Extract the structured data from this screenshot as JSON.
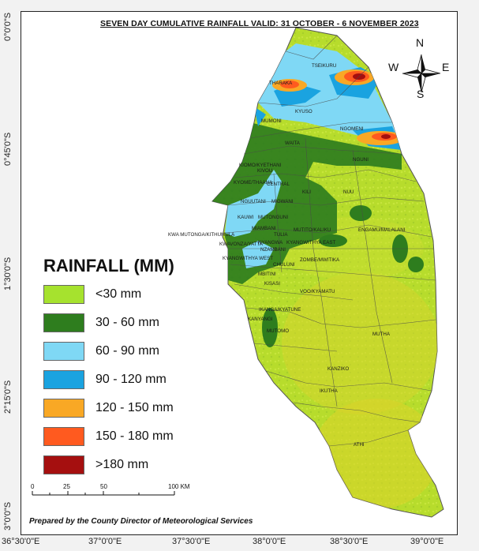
{
  "title": "SEVEN DAY CUMULATIVE RAINFALL VALID: 31 OCTOBER - 6 NOVEMBER 2023",
  "lat_labels": [
    "0°0'0\"S",
    "0°45'0\"S",
    "1°30'0\"S",
    "2°15'0\"S",
    "3°0'0\"S"
  ],
  "lon_labels": [
    "36°30'0\"E",
    "37°0'0\"E",
    "37°30'0\"E",
    "38°0'0\"E",
    "38°30'0\"E",
    "39°0'0\"E"
  ],
  "compass": {
    "n": "N",
    "s": "S",
    "e": "E",
    "w": "W"
  },
  "legend": {
    "title": "RAINFALL (MM)",
    "items": [
      {
        "label": "<30 mm",
        "color": "#a6e22e"
      },
      {
        "label": "30 - 60 mm",
        "color": "#2e7d1e"
      },
      {
        "label": "60 - 90 mm",
        "color": "#7fd8f5"
      },
      {
        "label": "90 - 120 mm",
        "color": "#1aa3e0"
      },
      {
        "label": "120 - 150 mm",
        "color": "#f9a825"
      },
      {
        "label": "150 - 180 mm",
        "color": "#ff5a1f"
      },
      {
        "label": ">180  mm",
        "color": "#a50f0f"
      }
    ]
  },
  "scale_bar": {
    "ticks": [
      "0",
      "25",
      "50",
      "100 KM"
    ]
  },
  "credit": "Prepared by the County Director of Meteorological Services",
  "places": [
    "TSEIKURU",
    "THARAKA",
    "KYUSO",
    "MUMONI",
    "NGOMENI",
    "WAITA",
    "NGUNI",
    "KIOMO/KYETHANI",
    "KIVOU",
    "KYOME/THAANA",
    "CENTRAL",
    "KILI",
    "NUU",
    "NGUUTANI",
    "MIGWANI",
    "KAUWI",
    "MUTONGUNI",
    "KWA MUTONGA/KITHUMULA",
    "MIAMBANI",
    "TULIA",
    "MUTITO/KALIKU",
    "NYANGWA",
    "KYANGWITHYA EAST",
    "ENGAMU/MALALANI",
    "KWAVONZA/YATTA",
    "NZAMBANI",
    "KYANGWITHYA WEST",
    "ZOMBE/MWITIKA",
    "MBITINI",
    "CHULUNI",
    "KISASI",
    "VOO/KYAMATU",
    "IKANGA/KYATUNE",
    "KANYANGI",
    "MUTOMO",
    "MUTHA",
    "KANZIKO",
    "IKUTHA",
    "ATHI"
  ]
}
